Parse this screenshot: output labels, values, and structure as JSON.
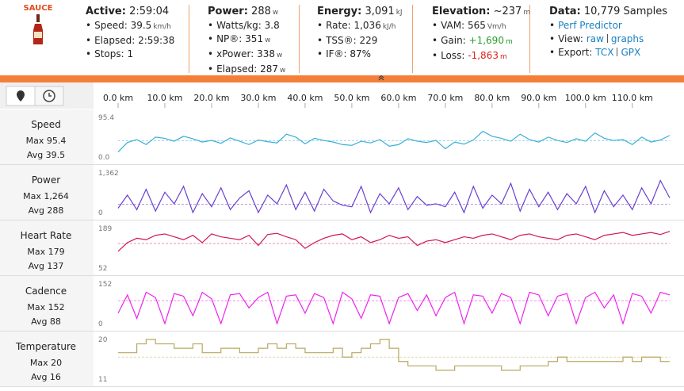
{
  "header": {
    "logo": "SAUCE",
    "columns": [
      {
        "title": {
          "label": "Active:",
          "value": "2:59:04"
        },
        "items": [
          {
            "label": "Speed:",
            "value": "39.5",
            "unit": "km/h"
          },
          {
            "label": "Elapsed:",
            "value": "2:59:38"
          },
          {
            "label": "Stops:",
            "value": "1"
          }
        ]
      },
      {
        "title": {
          "label": "Power:",
          "value": "288",
          "unit": "w"
        },
        "items": [
          {
            "label": "Watts/kg:",
            "value": "3.8"
          },
          {
            "label": "NP®:",
            "value": "351",
            "unit": "w"
          },
          {
            "label": "xPower:",
            "value": "338",
            "unit": "w"
          },
          {
            "label": "Elapsed:",
            "value": "287",
            "unit": "w"
          }
        ]
      },
      {
        "title": {
          "label": "Energy:",
          "value": "3,091",
          "unit": "kJ"
        },
        "items": [
          {
            "label": "Rate:",
            "value": "1,036",
            "unit": "kJ/h"
          },
          {
            "label": "TSS®:",
            "value": "229"
          },
          {
            "label": "IF®:",
            "value": "87%"
          }
        ]
      },
      {
        "title": {
          "label": "Elevation:",
          "value": "~237",
          "unit": "m"
        },
        "items": [
          {
            "label": "VAM:",
            "value": "565",
            "unit": "Vm/h"
          },
          {
            "label": "Gain:",
            "value": "+1,690",
            "unit": "m",
            "color": "#2a9d2a"
          },
          {
            "label": "Loss:",
            "value": "-1,863",
            "unit": "m",
            "color": "#d22"
          }
        ]
      },
      {
        "title": {
          "label": "Data:",
          "value": "10,779 Samples"
        },
        "items": [
          {
            "links": [
              "Perf Predictor"
            ]
          },
          {
            "label": "View:",
            "links": [
              "raw",
              "graphs"
            ]
          },
          {
            "label": "Export:",
            "links": [
              "TCX",
              "GPX"
            ]
          }
        ]
      }
    ]
  },
  "distance": {
    "xlim": [
      0,
      118
    ],
    "xticks": [
      {
        "value": 0,
        "label": "0.0 km"
      },
      {
        "value": 10,
        "label": "10.0 km"
      },
      {
        "value": 20,
        "label": "20.0 km"
      },
      {
        "value": 30,
        "label": "30.0 km"
      },
      {
        "value": 40,
        "label": "40.0 km"
      },
      {
        "value": 50,
        "label": "50.0 km"
      },
      {
        "value": 60,
        "label": "60.0 km"
      },
      {
        "value": 70,
        "label": "70.0 km"
      },
      {
        "value": 80,
        "label": "80.0 km"
      },
      {
        "value": 90,
        "label": "90.0 km"
      },
      {
        "value": 100,
        "label": "100.0 km"
      },
      {
        "value": 110,
        "label": "110.0 km"
      }
    ],
    "x": [
      0,
      2,
      4,
      6,
      8,
      10,
      12,
      14,
      16,
      18,
      20,
      22,
      24,
      26,
      28,
      30,
      32,
      34,
      36,
      38,
      40,
      42,
      44,
      46,
      48,
      50,
      52,
      54,
      56,
      58,
      60,
      62,
      64,
      66,
      68,
      70,
      72,
      74,
      76,
      78,
      80,
      82,
      84,
      86,
      88,
      90,
      92,
      94,
      96,
      98,
      100,
      102,
      104,
      106,
      108,
      110,
      112,
      114,
      116,
      118
    ]
  },
  "chart_data": [
    {
      "type": "line",
      "name": "Speed",
      "stats": [
        "Max 95.4",
        "Avg 39.5"
      ],
      "color": "#3aaed8",
      "avg": 39.5,
      "ylim": [
        0,
        95.4
      ],
      "yticks": [
        {
          "value": 0,
          "label": "0.0"
        },
        95.4
      ],
      "values": [
        12,
        35,
        42,
        30,
        48,
        45,
        38,
        50,
        44,
        36,
        40,
        33,
        46,
        38,
        30,
        41,
        37,
        34,
        55,
        48,
        32,
        45,
        40,
        36,
        30,
        28,
        38,
        34,
        42,
        26,
        30,
        44,
        38,
        35,
        40,
        20,
        36,
        31,
        41,
        62,
        50,
        45,
        38,
        55,
        42,
        36,
        48,
        40,
        35,
        44,
        38,
        58,
        45,
        40,
        42,
        30,
        48,
        36,
        41,
        52
      ]
    },
    {
      "type": "line",
      "name": "Power",
      "stats": [
        "Max 1,264",
        "Avg 288"
      ],
      "color": "#6a3fd0",
      "avg": 288,
      "ylim": [
        0,
        1362
      ],
      "yticks": [
        0,
        {
          "value": 1362,
          "label": "1,362"
        }
      ],
      "values": [
        150,
        600,
        100,
        800,
        50,
        700,
        300,
        900,
        0,
        650,
        200,
        850,
        100,
        500,
        750,
        0,
        600,
        300,
        950,
        100,
        700,
        50,
        800,
        400,
        250,
        200,
        900,
        0,
        650,
        300,
        850,
        100,
        550,
        250,
        300,
        200,
        700,
        0,
        900,
        150,
        600,
        300,
        1000,
        50,
        800,
        200,
        700,
        100,
        650,
        300,
        900,
        0,
        750,
        200,
        600,
        100,
        850,
        300,
        1100,
        500
      ]
    },
    {
      "type": "line",
      "name": "Heart Rate",
      "stats": [
        "Max 179",
        "Avg 137"
      ],
      "color": "#d0154e",
      "avg": 137,
      "ylim": [
        52,
        189
      ],
      "yticks": [
        52,
        189
      ],
      "values": [
        110,
        140,
        155,
        150,
        165,
        170,
        160,
        150,
        165,
        140,
        170,
        160,
        155,
        150,
        165,
        130,
        168,
        172,
        160,
        150,
        120,
        140,
        155,
        165,
        170,
        150,
        160,
        140,
        150,
        165,
        155,
        160,
        130,
        145,
        150,
        140,
        150,
        160,
        155,
        165,
        170,
        160,
        150,
        165,
        170,
        160,
        155,
        150,
        165,
        170,
        160,
        150,
        165,
        170,
        175,
        165,
        170,
        175,
        168,
        179
      ]
    },
    {
      "type": "line",
      "name": "Cadence",
      "stats": [
        "Max 152",
        "Avg 88"
      ],
      "color": "#ee22ee",
      "avg": 88,
      "ylim": [
        0,
        152
      ],
      "yticks": [
        0,
        152
      ],
      "values": [
        40,
        110,
        20,
        120,
        100,
        0,
        115,
        105,
        30,
        120,
        95,
        0,
        110,
        115,
        60,
        100,
        120,
        0,
        105,
        110,
        40,
        115,
        100,
        0,
        120,
        95,
        20,
        110,
        105,
        0,
        100,
        115,
        50,
        110,
        30,
        100,
        120,
        0,
        110,
        105,
        40,
        115,
        100,
        0,
        120,
        110,
        30,
        105,
        115,
        0,
        100,
        120,
        60,
        110,
        0,
        115,
        105,
        40,
        120,
        110
      ]
    },
    {
      "type": "line",
      "name": "Temperature",
      "stats": [
        "Max 20",
        "Avg 16"
      ],
      "color": "#b8a860",
      "avg": 16,
      "step": true,
      "ylim": [
        11,
        20
      ],
      "yticks": [
        11,
        20
      ],
      "values": [
        17,
        17,
        19,
        20,
        19,
        19,
        18,
        18,
        19,
        17,
        17,
        18,
        18,
        17,
        17,
        18,
        19,
        18,
        19,
        18,
        17,
        17,
        17,
        18,
        16,
        17,
        18,
        19,
        20,
        18,
        15,
        14,
        14,
        14,
        13,
        13,
        14,
        14,
        14,
        14,
        14,
        13,
        13,
        14,
        14,
        14,
        15,
        16,
        15,
        15,
        15,
        15,
        15,
        15,
        16,
        15,
        16,
        16,
        15,
        15
      ]
    }
  ]
}
